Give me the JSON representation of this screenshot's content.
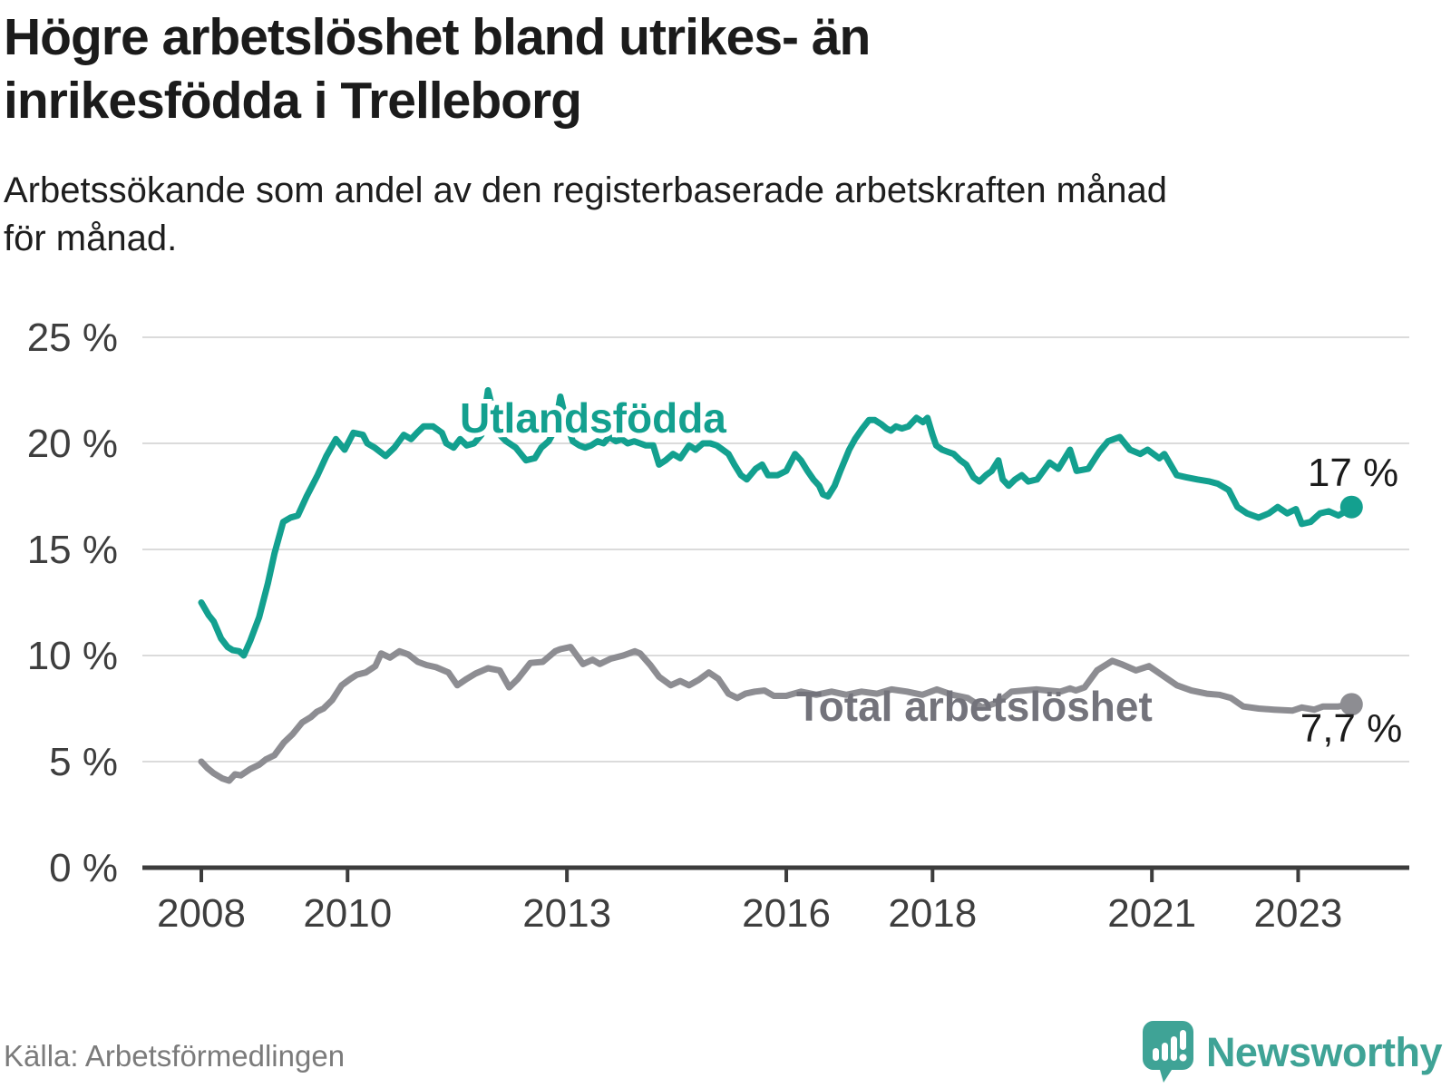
{
  "header": {
    "title_lines": [
      "Högre arbetslöshet bland utrikes- än",
      "inrikesfödda i Trelleborg"
    ],
    "subtitle_lines": [
      "Arbetssökande som andel av den registerbaserade arbetskraften månad",
      "för månad."
    ]
  },
  "footer": {
    "source": "Källa: Arbetsförmedlingen",
    "brand": "Newsworthy"
  },
  "colors": {
    "teal": "#13a08f",
    "gray_line": "#8d8d92",
    "gray_label": "#73737b",
    "axis": "#3c3c3c",
    "grid": "#dbdbdb",
    "tick_text": "#3e3e3e",
    "text_dark": "#1b1b1b",
    "source_text": "#7b7b7b",
    "brand_teal": "#3fa396"
  },
  "chart_data": {
    "type": "line",
    "title": "Högre arbetslöshet bland utrikes- än inrikesfödda i Trelleborg",
    "subtitle": "Arbetssökande som andel av den registerbaserade arbetskraften månad för månad.",
    "xlabel": "",
    "ylabel": "",
    "grid": true,
    "legend_position": "inline",
    "xlim": [
      2007.2,
      2024.5
    ],
    "ylim": [
      0,
      25
    ],
    "x_ticks": [
      {
        "value": 2008,
        "label": "2008"
      },
      {
        "value": 2010,
        "label": "2010"
      },
      {
        "value": 2013,
        "label": "2013"
      },
      {
        "value": 2016,
        "label": "2016"
      },
      {
        "value": 2018,
        "label": "2018"
      },
      {
        "value": 2021,
        "label": "2021"
      },
      {
        "value": 2023,
        "label": "2023"
      }
    ],
    "y_ticks": [
      {
        "value": 0,
        "label": "0 %"
      },
      {
        "value": 5,
        "label": "5 %"
      },
      {
        "value": 10,
        "label": "10 %"
      },
      {
        "value": 15,
        "label": "15 %"
      },
      {
        "value": 20,
        "label": "20 %"
      },
      {
        "value": 25,
        "label": "25 %"
      }
    ],
    "series": [
      {
        "name": "Utlandsfödda",
        "color": "#13a08f",
        "end_label": "17 %",
        "points": [
          [
            2008.0,
            12.5
          ],
          [
            2008.1,
            11.9
          ],
          [
            2008.17,
            11.6
          ],
          [
            2008.27,
            10.8
          ],
          [
            2008.36,
            10.4
          ],
          [
            2008.43,
            10.25
          ],
          [
            2008.52,
            10.2
          ],
          [
            2008.58,
            10.0
          ],
          [
            2008.67,
            10.7
          ],
          [
            2008.79,
            11.8
          ],
          [
            2008.91,
            13.4
          ],
          [
            2009.0,
            14.8
          ],
          [
            2009.12,
            16.3
          ],
          [
            2009.22,
            16.5
          ],
          [
            2009.32,
            16.6
          ],
          [
            2009.44,
            17.5
          ],
          [
            2009.59,
            18.5
          ],
          [
            2009.71,
            19.4
          ],
          [
            2009.84,
            20.2
          ],
          [
            2009.96,
            19.7
          ],
          [
            2010.08,
            20.5
          ],
          [
            2010.21,
            20.4
          ],
          [
            2010.27,
            20.0
          ],
          [
            2010.37,
            19.8
          ],
          [
            2010.52,
            19.4
          ],
          [
            2010.64,
            19.8
          ],
          [
            2010.77,
            20.4
          ],
          [
            2010.87,
            20.2
          ],
          [
            2010.95,
            20.5
          ],
          [
            2011.04,
            20.8
          ],
          [
            2011.17,
            20.8
          ],
          [
            2011.29,
            20.5
          ],
          [
            2011.35,
            20.0
          ],
          [
            2011.45,
            19.8
          ],
          [
            2011.54,
            20.2
          ],
          [
            2011.63,
            19.9
          ],
          [
            2011.73,
            20.0
          ],
          [
            2011.83,
            20.4
          ],
          [
            2011.92,
            22.5
          ],
          [
            2012.0,
            21.4
          ],
          [
            2012.08,
            20.4
          ],
          [
            2012.17,
            20.1
          ],
          [
            2012.3,
            19.8
          ],
          [
            2012.44,
            19.2
          ],
          [
            2012.56,
            19.3
          ],
          [
            2012.65,
            19.8
          ],
          [
            2012.75,
            20.1
          ],
          [
            2012.83,
            20.6
          ],
          [
            2012.91,
            22.2
          ],
          [
            2013.0,
            20.9
          ],
          [
            2013.08,
            20.1
          ],
          [
            2013.17,
            19.9
          ],
          [
            2013.25,
            19.8
          ],
          [
            2013.33,
            19.9
          ],
          [
            2013.42,
            20.1
          ],
          [
            2013.5,
            20.0
          ],
          [
            2013.58,
            20.3
          ],
          [
            2013.67,
            20.1
          ],
          [
            2013.75,
            20.2
          ],
          [
            2013.83,
            20.0
          ],
          [
            2013.92,
            20.1
          ],
          [
            2014.0,
            20.0
          ],
          [
            2014.08,
            19.9
          ],
          [
            2014.18,
            19.9
          ],
          [
            2014.26,
            19.0
          ],
          [
            2014.35,
            19.2
          ],
          [
            2014.45,
            19.5
          ],
          [
            2014.55,
            19.3
          ],
          [
            2014.67,
            19.9
          ],
          [
            2014.76,
            19.7
          ],
          [
            2014.86,
            20.0
          ],
          [
            2014.96,
            20.0
          ],
          [
            2015.05,
            19.9
          ],
          [
            2015.13,
            19.7
          ],
          [
            2015.21,
            19.5
          ],
          [
            2015.29,
            19.0
          ],
          [
            2015.38,
            18.5
          ],
          [
            2015.46,
            18.3
          ],
          [
            2015.58,
            18.8
          ],
          [
            2015.67,
            19.0
          ],
          [
            2015.75,
            18.5
          ],
          [
            2015.88,
            18.5
          ],
          [
            2016.0,
            18.7
          ],
          [
            2016.12,
            19.5
          ],
          [
            2016.2,
            19.2
          ],
          [
            2016.29,
            18.7
          ],
          [
            2016.37,
            18.3
          ],
          [
            2016.45,
            18.0
          ],
          [
            2016.5,
            17.6
          ],
          [
            2016.57,
            17.5
          ],
          [
            2016.66,
            18.0
          ],
          [
            2016.74,
            18.7
          ],
          [
            2016.86,
            19.7
          ],
          [
            2016.94,
            20.2
          ],
          [
            2017.04,
            20.7
          ],
          [
            2017.13,
            21.1
          ],
          [
            2017.21,
            21.1
          ],
          [
            2017.3,
            20.9
          ],
          [
            2017.37,
            20.7
          ],
          [
            2017.43,
            20.6
          ],
          [
            2017.5,
            20.8
          ],
          [
            2017.58,
            20.7
          ],
          [
            2017.67,
            20.8
          ],
          [
            2017.78,
            21.2
          ],
          [
            2017.87,
            21.0
          ],
          [
            2017.93,
            21.2
          ],
          [
            2018.0,
            20.4
          ],
          [
            2018.05,
            19.9
          ],
          [
            2018.13,
            19.7
          ],
          [
            2018.21,
            19.6
          ],
          [
            2018.29,
            19.5
          ],
          [
            2018.38,
            19.2
          ],
          [
            2018.46,
            19.0
          ],
          [
            2018.56,
            18.4
          ],
          [
            2018.64,
            18.2
          ],
          [
            2018.73,
            18.5
          ],
          [
            2018.81,
            18.7
          ],
          [
            2018.9,
            19.2
          ],
          [
            2018.96,
            18.3
          ],
          [
            2019.04,
            18.0
          ],
          [
            2019.13,
            18.3
          ],
          [
            2019.22,
            18.5
          ],
          [
            2019.31,
            18.2
          ],
          [
            2019.43,
            18.3
          ],
          [
            2019.6,
            19.1
          ],
          [
            2019.72,
            18.8
          ],
          [
            2019.88,
            19.7
          ],
          [
            2019.97,
            18.7
          ],
          [
            2020.13,
            18.8
          ],
          [
            2020.28,
            19.6
          ],
          [
            2020.4,
            20.1
          ],
          [
            2020.56,
            20.3
          ],
          [
            2020.7,
            19.7
          ],
          [
            2020.84,
            19.5
          ],
          [
            2020.94,
            19.7
          ],
          [
            2021.1,
            19.3
          ],
          [
            2021.17,
            19.5
          ],
          [
            2021.34,
            18.5
          ],
          [
            2021.47,
            18.4
          ],
          [
            2021.62,
            18.3
          ],
          [
            2021.79,
            18.2
          ],
          [
            2021.9,
            18.1
          ],
          [
            2022.05,
            17.8
          ],
          [
            2022.17,
            17.0
          ],
          [
            2022.3,
            16.7
          ],
          [
            2022.46,
            16.5
          ],
          [
            2022.6,
            16.7
          ],
          [
            2022.72,
            17.0
          ],
          [
            2022.85,
            16.7
          ],
          [
            2022.97,
            16.9
          ],
          [
            2023.05,
            16.2
          ],
          [
            2023.17,
            16.3
          ],
          [
            2023.3,
            16.7
          ],
          [
            2023.42,
            16.8
          ],
          [
            2023.55,
            16.6
          ],
          [
            2023.65,
            16.8
          ],
          [
            2023.73,
            17.0
          ]
        ]
      },
      {
        "name": "Total arbetslöshet",
        "color": "#8d8d92",
        "end_label": "7,7 %",
        "points": [
          [
            2008.0,
            5.0
          ],
          [
            2008.08,
            4.7
          ],
          [
            2008.17,
            4.45
          ],
          [
            2008.29,
            4.2
          ],
          [
            2008.38,
            4.1
          ],
          [
            2008.46,
            4.4
          ],
          [
            2008.54,
            4.35
          ],
          [
            2008.67,
            4.65
          ],
          [
            2008.79,
            4.85
          ],
          [
            2008.88,
            5.1
          ],
          [
            2009.0,
            5.3
          ],
          [
            2009.13,
            5.9
          ],
          [
            2009.25,
            6.3
          ],
          [
            2009.38,
            6.85
          ],
          [
            2009.5,
            7.1
          ],
          [
            2009.58,
            7.35
          ],
          [
            2009.67,
            7.5
          ],
          [
            2009.79,
            7.9
          ],
          [
            2009.92,
            8.6
          ],
          [
            2010.04,
            8.9
          ],
          [
            2010.13,
            9.1
          ],
          [
            2010.25,
            9.2
          ],
          [
            2010.38,
            9.5
          ],
          [
            2010.46,
            10.1
          ],
          [
            2010.58,
            9.9
          ],
          [
            2010.71,
            10.2
          ],
          [
            2010.83,
            10.05
          ],
          [
            2010.96,
            9.7
          ],
          [
            2011.08,
            9.55
          ],
          [
            2011.21,
            9.45
          ],
          [
            2011.38,
            9.2
          ],
          [
            2011.5,
            8.6
          ],
          [
            2011.63,
            8.9
          ],
          [
            2011.75,
            9.15
          ],
          [
            2011.92,
            9.4
          ],
          [
            2012.08,
            9.3
          ],
          [
            2012.21,
            8.5
          ],
          [
            2012.33,
            8.9
          ],
          [
            2012.5,
            9.65
          ],
          [
            2012.67,
            9.7
          ],
          [
            2012.84,
            10.2
          ],
          [
            2012.91,
            10.3
          ],
          [
            2013.05,
            10.4
          ],
          [
            2013.22,
            9.6
          ],
          [
            2013.35,
            9.8
          ],
          [
            2013.45,
            9.6
          ],
          [
            2013.6,
            9.85
          ],
          [
            2013.77,
            10.0
          ],
          [
            2013.93,
            10.2
          ],
          [
            2014.0,
            10.1
          ],
          [
            2014.14,
            9.55
          ],
          [
            2014.26,
            9.0
          ],
          [
            2014.42,
            8.6
          ],
          [
            2014.55,
            8.8
          ],
          [
            2014.67,
            8.6
          ],
          [
            2014.8,
            8.85
          ],
          [
            2014.94,
            9.2
          ],
          [
            2015.07,
            8.9
          ],
          [
            2015.21,
            8.2
          ],
          [
            2015.33,
            8.0
          ],
          [
            2015.44,
            8.2
          ],
          [
            2015.57,
            8.3
          ],
          [
            2015.7,
            8.35
          ],
          [
            2015.83,
            8.1
          ],
          [
            2016.0,
            8.1
          ],
          [
            2016.2,
            8.3
          ],
          [
            2016.41,
            8.15
          ],
          [
            2016.62,
            8.3
          ],
          [
            2016.82,
            8.15
          ],
          [
            2017.03,
            8.3
          ],
          [
            2017.24,
            8.2
          ],
          [
            2017.44,
            8.4
          ],
          [
            2017.65,
            8.3
          ],
          [
            2017.86,
            8.15
          ],
          [
            2018.06,
            8.4
          ],
          [
            2018.27,
            8.15
          ],
          [
            2018.48,
            8.0
          ],
          [
            2018.68,
            7.55
          ],
          [
            2018.9,
            7.8
          ],
          [
            2019.08,
            8.3
          ],
          [
            2019.25,
            8.35
          ],
          [
            2019.42,
            8.4
          ],
          [
            2019.58,
            8.35
          ],
          [
            2019.75,
            8.3
          ],
          [
            2019.88,
            8.45
          ],
          [
            2019.96,
            8.35
          ],
          [
            2020.08,
            8.5
          ],
          [
            2020.25,
            9.3
          ],
          [
            2020.46,
            9.75
          ],
          [
            2020.58,
            9.6
          ],
          [
            2020.78,
            9.3
          ],
          [
            2020.96,
            9.5
          ],
          [
            2021.13,
            9.1
          ],
          [
            2021.34,
            8.6
          ],
          [
            2021.54,
            8.35
          ],
          [
            2021.75,
            8.2
          ],
          [
            2021.92,
            8.15
          ],
          [
            2022.08,
            8.0
          ],
          [
            2022.25,
            7.6
          ],
          [
            2022.46,
            7.5
          ],
          [
            2022.67,
            7.45
          ],
          [
            2022.92,
            7.4
          ],
          [
            2023.05,
            7.55
          ],
          [
            2023.22,
            7.45
          ],
          [
            2023.34,
            7.6
          ],
          [
            2023.55,
            7.6
          ],
          [
            2023.73,
            7.7
          ]
        ]
      }
    ]
  }
}
